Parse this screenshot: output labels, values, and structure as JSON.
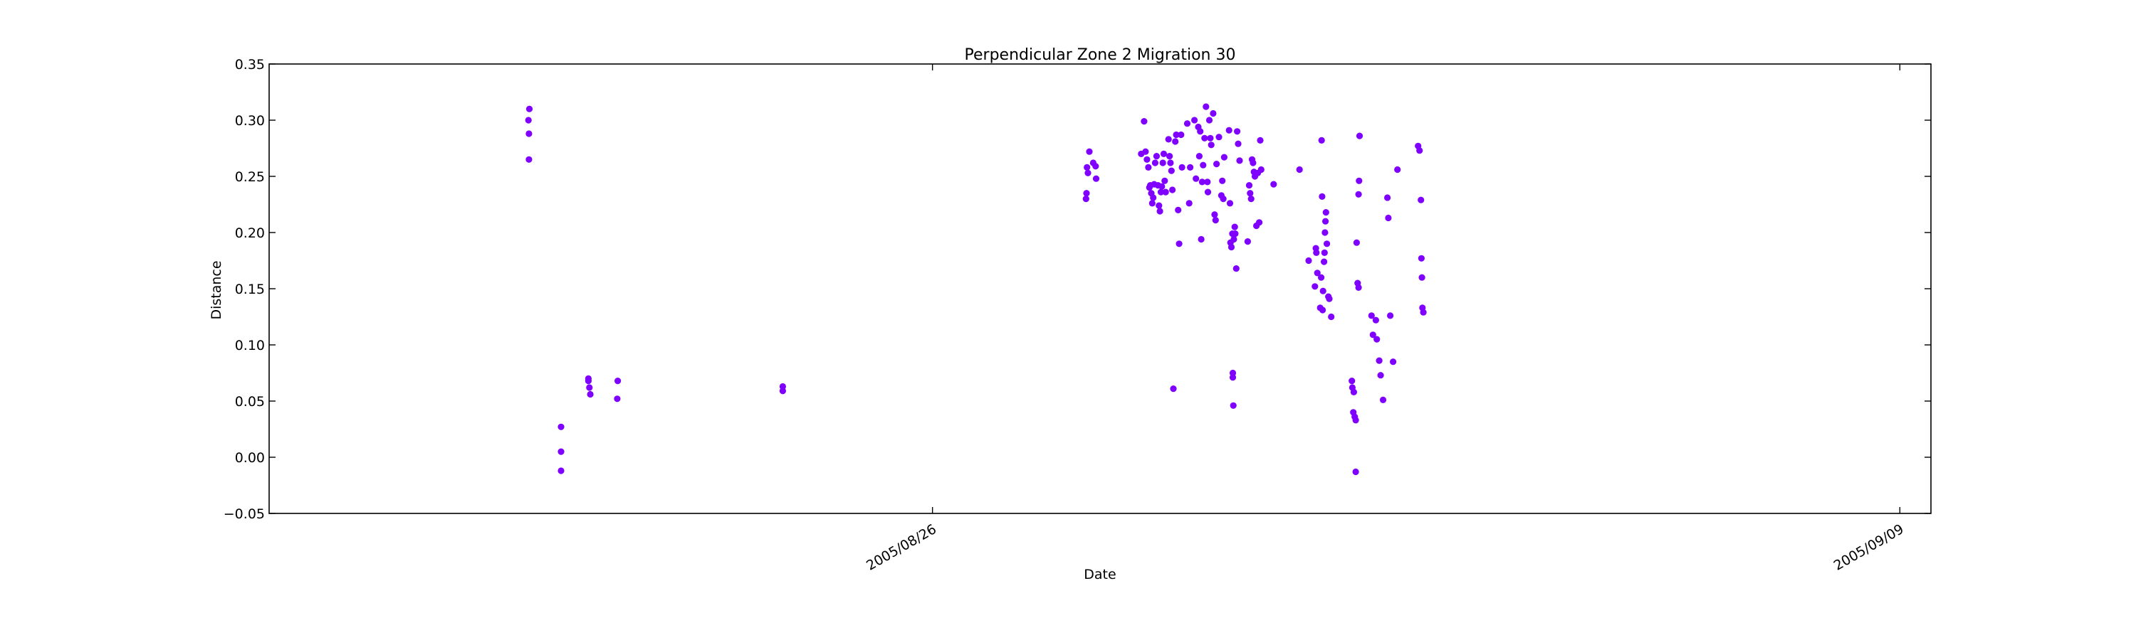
{
  "chart_data": {
    "type": "scatter",
    "title": "Perpendicular Zone 2 Migration 30",
    "xlabel": "Date",
    "ylabel": "Distance",
    "x_axis_type": "date",
    "xlim": [
      "2005-08-16T09:36",
      "2005-09-09T10:48"
    ],
    "ylim": [
      -0.05,
      0.35
    ],
    "y_ticks": [
      -0.05,
      0.0,
      0.05,
      0.1,
      0.15,
      0.2,
      0.25,
      0.3,
      0.35
    ],
    "y_tick_labels": [
      "−0.05",
      "0.00",
      "0.05",
      "0.10",
      "0.15",
      "0.20",
      "0.25",
      "0.30",
      "0.35"
    ],
    "x_ticks": [
      "2005-08-26T00:00",
      "2005-09-09T00:00"
    ],
    "x_tick_labels": [
      "2005/08/26",
      "2005/09/09"
    ],
    "grid": false,
    "marker_color": "#7f00ff",
    "points": [
      [
        "2005-08-20T03:40",
        0.3
      ],
      [
        "2005-08-20T04:00",
        0.31
      ],
      [
        "2005-08-20T03:50",
        0.288
      ],
      [
        "2005-08-20T03:50",
        0.265
      ],
      [
        "2005-08-20T15:00",
        0.027
      ],
      [
        "2005-08-20T15:00",
        0.005
      ],
      [
        "2005-08-20T15:00",
        -0.012
      ],
      [
        "2005-08-21T00:30",
        0.07
      ],
      [
        "2005-08-21T00:30",
        0.068
      ],
      [
        "2005-08-21T00:50",
        0.062
      ],
      [
        "2005-08-21T01:10",
        0.056
      ],
      [
        "2005-08-21T10:40",
        0.068
      ],
      [
        "2005-08-21T10:30",
        0.052
      ],
      [
        "2005-08-23T20:00",
        0.063
      ],
      [
        "2005-08-23T20:00",
        0.059
      ],
      [
        "2005-08-28T05:20",
        0.23
      ],
      [
        "2005-08-28T05:30",
        0.235
      ],
      [
        "2005-08-28T05:40",
        0.258
      ],
      [
        "2005-08-28T06:00",
        0.253
      ],
      [
        "2005-08-28T06:30",
        0.272
      ],
      [
        "2005-08-28T07:50",
        0.262
      ],
      [
        "2005-08-28T08:40",
        0.259
      ],
      [
        "2005-08-28T08:50",
        0.248
      ],
      [
        "2005-08-29T00:30",
        0.27
      ],
      [
        "2005-08-29T01:30",
        0.299
      ],
      [
        "2005-08-29T02:00",
        0.272
      ],
      [
        "2005-08-29T02:30",
        0.265
      ],
      [
        "2005-08-29T03:00",
        0.258
      ],
      [
        "2005-08-29T03:20",
        0.24
      ],
      [
        "2005-08-29T03:40",
        0.242
      ],
      [
        "2005-08-29T04:00",
        0.235
      ],
      [
        "2005-08-29T04:20",
        0.226
      ],
      [
        "2005-08-29T04:40",
        0.231
      ],
      [
        "2005-08-29T05:00",
        0.243
      ],
      [
        "2005-08-29T05:20",
        0.262
      ],
      [
        "2005-08-29T05:50",
        0.268
      ],
      [
        "2005-08-29T06:20",
        0.242
      ],
      [
        "2005-08-29T06:40",
        0.224
      ],
      [
        "2005-08-29T07:00",
        0.219
      ],
      [
        "2005-08-29T07:20",
        0.236
      ],
      [
        "2005-08-29T07:40",
        0.241
      ],
      [
        "2005-08-29T08:00",
        0.262
      ],
      [
        "2005-08-29T08:20",
        0.27
      ],
      [
        "2005-08-29T08:40",
        0.246
      ],
      [
        "2005-08-29T09:00",
        0.236
      ],
      [
        "2005-08-29T10:00",
        0.283
      ],
      [
        "2005-08-29T10:20",
        0.268
      ],
      [
        "2005-08-29T10:40",
        0.262
      ],
      [
        "2005-08-29T11:00",
        0.255
      ],
      [
        "2005-08-29T11:20",
        0.238
      ],
      [
        "2005-08-29T11:40",
        0.061
      ],
      [
        "2005-08-29T12:20",
        0.281
      ],
      [
        "2005-08-29T12:40",
        0.287
      ],
      [
        "2005-08-29T13:20",
        0.22
      ],
      [
        "2005-08-29T13:40",
        0.19
      ],
      [
        "2005-08-29T14:20",
        0.287
      ],
      [
        "2005-08-29T14:40",
        0.258
      ],
      [
        "2005-08-29T16:30",
        0.297
      ],
      [
        "2005-08-29T17:10",
        0.226
      ],
      [
        "2005-08-29T17:30",
        0.258
      ],
      [
        "2005-08-29T19:00",
        0.3
      ],
      [
        "2005-08-29T19:30",
        0.248
      ],
      [
        "2005-08-29T20:20",
        0.294
      ],
      [
        "2005-08-29T20:40",
        0.268
      ],
      [
        "2005-08-29T21:00",
        0.29
      ],
      [
        "2005-08-29T21:20",
        0.194
      ],
      [
        "2005-08-29T21:40",
        0.245
      ],
      [
        "2005-08-29T22:00",
        0.26
      ],
      [
        "2005-08-29T22:30",
        0.284
      ],
      [
        "2005-08-29T23:00",
        0.312
      ],
      [
        "2005-08-29T23:30",
        0.245
      ],
      [
        "2005-08-29T23:40",
        0.236
      ],
      [
        "2005-08-30T00:10",
        0.3
      ],
      [
        "2005-08-30T00:30",
        0.284
      ],
      [
        "2005-08-30T00:50",
        0.278
      ],
      [
        "2005-08-30T01:30",
        0.306
      ],
      [
        "2005-08-30T02:00",
        0.216
      ],
      [
        "2005-08-30T02:20",
        0.211
      ],
      [
        "2005-08-30T02:40",
        0.261
      ],
      [
        "2005-08-30T03:30",
        0.285
      ],
      [
        "2005-08-30T04:20",
        0.233
      ],
      [
        "2005-08-30T04:40",
        0.246
      ],
      [
        "2005-08-30T05:00",
        0.23
      ],
      [
        "2005-08-30T05:20",
        0.267
      ],
      [
        "2005-08-30T07:00",
        0.291
      ],
      [
        "2005-08-30T07:20",
        0.226
      ],
      [
        "2005-08-30T07:30",
        0.191
      ],
      [
        "2005-08-30T07:50",
        0.187
      ],
      [
        "2005-08-30T08:10",
        0.199
      ],
      [
        "2005-08-30T08:20",
        0.075
      ],
      [
        "2005-08-30T08:20",
        0.071
      ],
      [
        "2005-08-30T08:30",
        0.046
      ],
      [
        "2005-08-30T08:40",
        0.194
      ],
      [
        "2005-08-30T09:00",
        0.205
      ],
      [
        "2005-08-30T09:10",
        0.199
      ],
      [
        "2005-08-30T09:30",
        0.168
      ],
      [
        "2005-08-30T09:50",
        0.29
      ],
      [
        "2005-08-30T10:10",
        0.279
      ],
      [
        "2005-08-30T10:40",
        0.264
      ],
      [
        "2005-08-30T13:30",
        0.192
      ],
      [
        "2005-08-30T14:00",
        0.242
      ],
      [
        "2005-08-30T14:20",
        0.235
      ],
      [
        "2005-08-30T14:40",
        0.23
      ],
      [
        "2005-08-30T15:00",
        0.265
      ],
      [
        "2005-08-30T15:20",
        0.262
      ],
      [
        "2005-08-30T15:40",
        0.254
      ],
      [
        "2005-08-30T16:00",
        0.25
      ],
      [
        "2005-08-30T16:30",
        0.206
      ],
      [
        "2005-08-30T17:00",
        0.253
      ],
      [
        "2005-08-30T17:30",
        0.209
      ],
      [
        "2005-08-30T17:50",
        0.282
      ],
      [
        "2005-08-30T18:10",
        0.256
      ],
      [
        "2005-08-30T22:30",
        0.243
      ],
      [
        "2005-08-31T07:30",
        0.256
      ],
      [
        "2005-08-31T10:40",
        0.175
      ],
      [
        "2005-08-31T12:50",
        0.152
      ],
      [
        "2005-08-31T13:10",
        0.186
      ],
      [
        "2005-08-31T13:20",
        0.182
      ],
      [
        "2005-08-31T13:40",
        0.164
      ],
      [
        "2005-08-31T14:40",
        0.133
      ],
      [
        "2005-08-31T15:00",
        0.16
      ],
      [
        "2005-08-31T15:10",
        0.282
      ],
      [
        "2005-08-31T15:20",
        0.232
      ],
      [
        "2005-08-31T15:30",
        0.131
      ],
      [
        "2005-08-31T15:40",
        0.148
      ],
      [
        "2005-08-31T16:00",
        0.174
      ],
      [
        "2005-08-31T16:10",
        0.182
      ],
      [
        "2005-08-31T16:20",
        0.2
      ],
      [
        "2005-08-31T16:30",
        0.21
      ],
      [
        "2005-08-31T16:40",
        0.218
      ],
      [
        "2005-08-31T17:00",
        0.19
      ],
      [
        "2005-08-31T17:30",
        0.143
      ],
      [
        "2005-08-31T17:50",
        0.141
      ],
      [
        "2005-08-31T18:30",
        0.125
      ],
      [
        "2005-09-01T01:40",
        0.068
      ],
      [
        "2005-09-01T01:50",
        0.062
      ],
      [
        "2005-09-01T02:10",
        0.04
      ],
      [
        "2005-09-01T02:20",
        0.058
      ],
      [
        "2005-09-01T02:40",
        0.036
      ],
      [
        "2005-09-01T03:00",
        0.033
      ],
      [
        "2005-09-01T03:00",
        -0.013
      ],
      [
        "2005-09-01T03:20",
        0.191
      ],
      [
        "2005-09-01T03:40",
        0.155
      ],
      [
        "2005-09-01T04:00",
        0.151
      ],
      [
        "2005-09-01T04:00",
        0.234
      ],
      [
        "2005-09-01T04:10",
        0.246
      ],
      [
        "2005-09-01T04:20",
        0.286
      ],
      [
        "2005-09-01T08:30",
        0.126
      ],
      [
        "2005-09-01T09:00",
        0.109
      ],
      [
        "2005-09-01T10:00",
        0.122
      ],
      [
        "2005-09-01T10:20",
        0.105
      ],
      [
        "2005-09-01T11:10",
        0.086
      ],
      [
        "2005-09-01T11:40",
        0.073
      ],
      [
        "2005-09-01T12:30",
        0.051
      ],
      [
        "2005-09-01T14:00",
        0.231
      ],
      [
        "2005-09-01T14:20",
        0.213
      ],
      [
        "2005-09-01T15:00",
        0.126
      ],
      [
        "2005-09-01T16:00",
        0.085
      ],
      [
        "2005-09-01T17:30",
        0.256
      ],
      [
        "2005-09-02T00:40",
        0.277
      ],
      [
        "2005-09-02T01:10",
        0.273
      ],
      [
        "2005-09-02T01:40",
        0.229
      ],
      [
        "2005-09-02T01:50",
        0.177
      ],
      [
        "2005-09-02T02:00",
        0.16
      ],
      [
        "2005-09-02T02:10",
        0.133
      ],
      [
        "2005-09-02T02:30",
        0.129
      ]
    ]
  }
}
